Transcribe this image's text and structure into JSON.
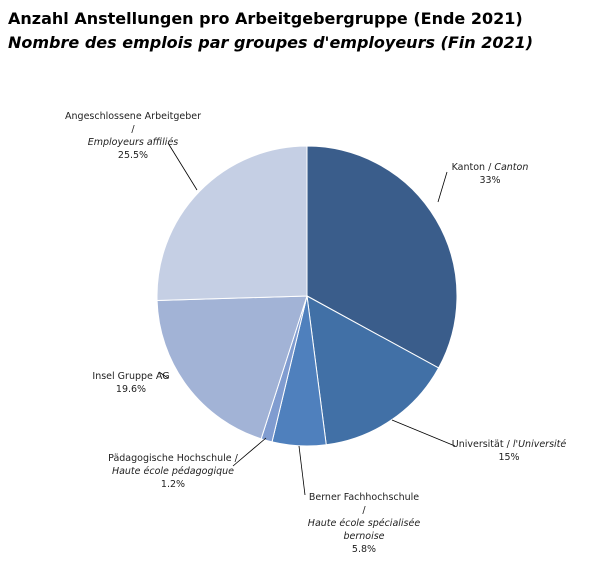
{
  "chart_data": {
    "type": "pie",
    "title": "Anzahl Anstellungen  pro Arbeitgebergruppe (Ende 2021)",
    "subtitle": "Nombre des emplois par groupes d'employeurs (Fin 2021)",
    "categories": [
      "Kanton /",
      "Universität /",
      "Berner Fachhochschule /",
      "Pädagogische Hochschule /",
      "Insel Gruppe AG",
      "Angeschlossene Arbeitgeber /"
    ],
    "categories_fr": [
      "Canton",
      "l'Université",
      "Haute école spécialisée bernoise",
      "Haute école pédagogique",
      null,
      "Employeurs affiliés"
    ],
    "values": [
      33,
      15,
      5.8,
      1.2,
      19.6,
      25.5
    ],
    "value_labels": [
      "33%",
      "15%",
      "5.8%",
      "1.2%",
      "19.6%",
      "25.5%"
    ],
    "colors": [
      "#3a5d8b",
      "#4170a6",
      "#4f80bd",
      "#809cd0",
      "#a2b3d6",
      "#c5cfe4"
    ]
  }
}
